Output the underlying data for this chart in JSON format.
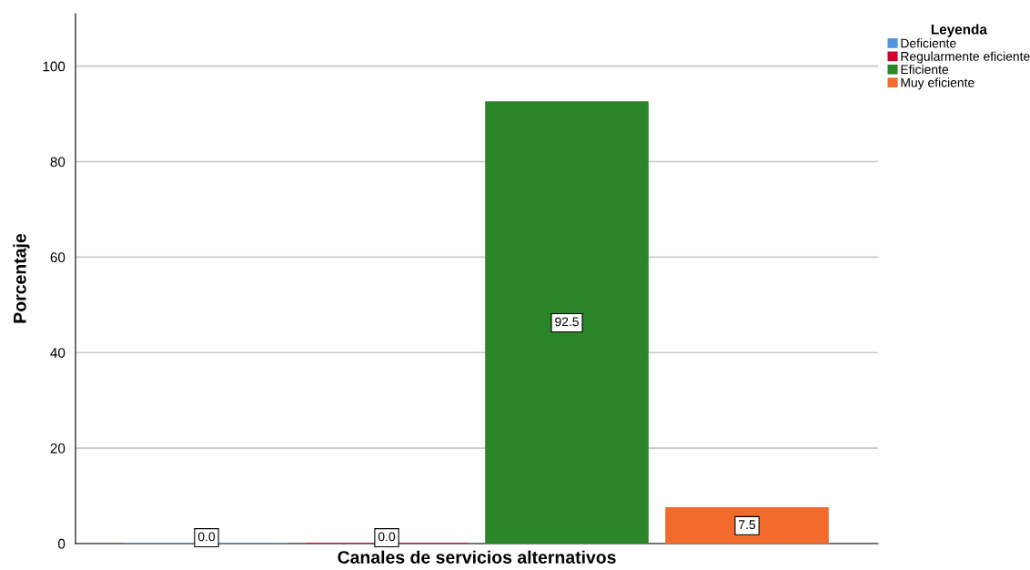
{
  "chart_data": {
    "type": "bar",
    "xlabel": "Canales de servicios alternativos",
    "ylabel": "Porcentaje",
    "legend_title": "Leyenda",
    "categories": [
      null
    ],
    "series": [
      {
        "name": "Deficiente",
        "color": "#4f94e0",
        "values": [
          0.0
        ],
        "value_labels": [
          "0.0"
        ]
      },
      {
        "name": "Regularmente eficiente",
        "color": "#d2002f",
        "values": [
          0.0
        ],
        "value_labels": [
          "0.0"
        ]
      },
      {
        "name": "Eficiente",
        "color": "#2a8629",
        "values": [
          92.5
        ],
        "value_labels": [
          "92.5"
        ]
      },
      {
        "name": "Muy eficiente",
        "color": "#f36b2c",
        "values": [
          7.5
        ],
        "value_labels": [
          "7.5"
        ]
      }
    ],
    "ylim": [
      0,
      111
    ],
    "yticks": [
      0,
      20,
      40,
      60,
      80,
      100
    ],
    "grid": "y",
    "legend": "top right",
    "tick_labels": "y"
  }
}
